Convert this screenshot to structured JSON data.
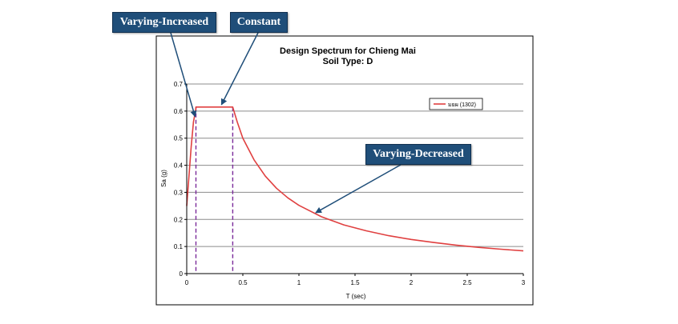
{
  "chart_data": {
    "type": "line",
    "title": "Design Spectrum for Chieng Mai",
    "subtitle": "Soil Type: D",
    "xlabel": "T (sec)",
    "ylabel": "Sa (g)",
    "xlim": [
      0,
      3
    ],
    "ylim": [
      0,
      0.7
    ],
    "x_ticks": [
      "0",
      "0.5",
      "1",
      "1.5",
      "2",
      "2.5",
      "3"
    ],
    "y_ticks": [
      "0",
      "0.1",
      "0.2",
      "0.3",
      "0.4",
      "0.5",
      "0.6",
      "0.7"
    ],
    "grid": true,
    "legend_position": "top-right",
    "series": [
      {
        "name": "มยผ (1302)",
        "color": "#e04040",
        "x": [
          0,
          0.02,
          0.04,
          0.06,
          0.08,
          0.082,
          0.1,
          0.2,
          0.3,
          0.41,
          0.45,
          0.5,
          0.6,
          0.7,
          0.8,
          0.9,
          1.0,
          1.2,
          1.4,
          1.6,
          1.8,
          2.0,
          2.2,
          2.4,
          2.6,
          2.8,
          3.0
        ],
        "y": [
          0.25,
          0.36,
          0.47,
          0.56,
          0.605,
          0.615,
          0.615,
          0.615,
          0.615,
          0.615,
          0.56,
          0.5,
          0.42,
          0.36,
          0.315,
          0.28,
          0.252,
          0.21,
          0.18,
          0.158,
          0.14,
          0.126,
          0.115,
          0.105,
          0.097,
          0.09,
          0.084
        ]
      }
    ],
    "reference_lines_x": [
      0.082,
      0.41
    ],
    "annotations": [
      "Varying-Increased",
      "Constant",
      "Varying-Decreased"
    ]
  }
}
